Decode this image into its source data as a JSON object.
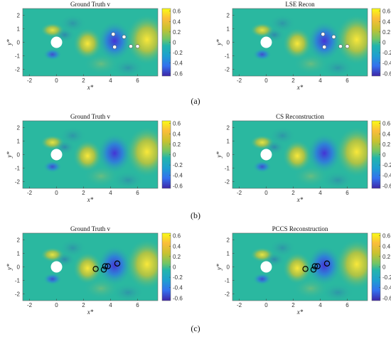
{
  "figure": {
    "rows": [
      {
        "label": "(a)",
        "axis_style": "row-a",
        "panels": [
          {
            "title": "Ground Truth v",
            "sensors": {
              "style": "filled",
              "points": [
                [
                  4.2,
                  0.6
                ],
                [
                  5.0,
                  0.4
                ],
                [
                  4.3,
                  -0.35
                ],
                [
                  5.5,
                  -0.3
                ],
                [
                  6.0,
                  -0.3
                ]
              ]
            }
          },
          {
            "title": "LSE Recon",
            "sensors": {
              "style": "filled",
              "points": [
                [
                  4.2,
                  0.6
                ],
                [
                  5.0,
                  0.4
                ],
                [
                  4.3,
                  -0.35
                ],
                [
                  5.5,
                  -0.3
                ],
                [
                  6.0,
                  -0.3
                ]
              ]
            }
          }
        ]
      },
      {
        "label": "(b)",
        "axis_style": "row-bc",
        "panels": [
          {
            "title": "Ground Truth v",
            "sensors": {
              "style": "none",
              "points": []
            }
          },
          {
            "title": "CS Reconstruction",
            "sensors": {
              "style": "none",
              "points": []
            }
          }
        ]
      },
      {
        "label": "(c)",
        "axis_style": "row-bc",
        "panels": [
          {
            "title": "Ground Truth v",
            "sensors": {
              "style": "hollow",
              "points": [
                [
                  2.9,
                  -0.15
                ],
                [
                  3.5,
                  -0.2
                ],
                [
                  3.6,
                  0.05
                ],
                [
                  3.8,
                  0.05
                ],
                [
                  4.5,
                  0.25
                ]
              ]
            }
          },
          {
            "title": "PCCS Reconstruction",
            "sensors": {
              "style": "hollow",
              "points": [
                [
                  2.9,
                  -0.15
                ],
                [
                  3.5,
                  -0.2
                ],
                [
                  3.6,
                  0.05
                ],
                [
                  3.8,
                  0.05
                ],
                [
                  4.5,
                  0.25
                ]
              ]
            }
          }
        ]
      }
    ],
    "axes": {
      "row-a": {
        "xlabel": "x*",
        "ylabel": "y*"
      },
      "row-bc": {
        "xlabel": "x*",
        "ylabel": "y*"
      },
      "xticks": [
        "-2",
        "0",
        "2",
        "4",
        "6"
      ],
      "yticks": [
        "2",
        "1",
        "0",
        "-1",
        "-2"
      ],
      "xlim": [
        -2.5,
        7.5
      ],
      "ylim": [
        -2.5,
        2.5
      ]
    },
    "colorbar": {
      "ticks_a": [
        "0.6",
        "0.4",
        "0.2",
        "0",
        "-0.2",
        "-0.4",
        "-0.6"
      ],
      "ticks_bc": [
        "0.6",
        "0.4",
        "0.2",
        "0",
        "-0.2",
        "-0.4",
        "-0.6"
      ],
      "range": [
        -0.65,
        0.65
      ]
    },
    "colors": {
      "low": "#3e26a8",
      "mid": "#2ab8a0",
      "high": "#f9fb15"
    }
  }
}
